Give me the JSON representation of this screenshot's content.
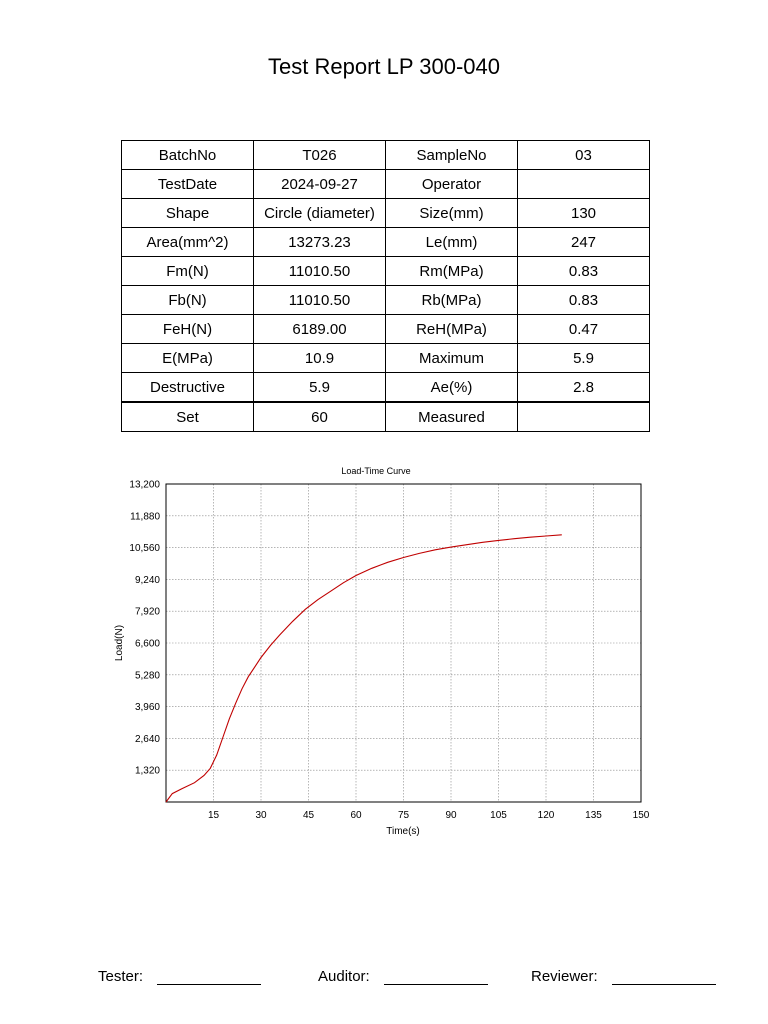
{
  "report": {
    "title": "Test Report LP 300-040"
  },
  "table": {
    "rows": [
      [
        "BatchNo",
        "T026",
        "SampleNo",
        "03"
      ],
      [
        "TestDate",
        "2024-09-27",
        "Operator",
        ""
      ],
      [
        "Shape",
        "Circle (diameter)",
        "Size(mm)",
        "130"
      ],
      [
        "Area(mm^2)",
        "13273.23",
        "Le(mm)",
        "247"
      ],
      [
        "Fm(N)",
        "11010.50",
        "Rm(MPa)",
        "0.83"
      ],
      [
        "Fb(N)",
        "11010.50",
        "Rb(MPa)",
        "0.83"
      ],
      [
        "FeH(N)",
        "6189.00",
        "ReH(MPa)",
        "0.47"
      ],
      [
        "E(MPa)",
        "10.9",
        "Maximum",
        "5.9"
      ],
      [
        "Destructive",
        "5.9",
        "Ae(%)",
        "2.8"
      ],
      [
        "Set",
        "60",
        "Measured",
        ""
      ]
    ]
  },
  "chart_data": {
    "type": "line",
    "title": "Load-Time Curve",
    "xlabel": "Time(s)",
    "ylabel": "Load(N)",
    "xlim": [
      0,
      150
    ],
    "ylim": [
      0,
      13200
    ],
    "x_ticks": [
      "15",
      "30",
      "45",
      "60",
      "75",
      "90",
      "105",
      "120",
      "135",
      "150"
    ],
    "y_ticks": [
      "1,320",
      "2,640",
      "3,960",
      "5,280",
      "6,600",
      "7,920",
      "9,240",
      "10,560",
      "11,880",
      "13,200"
    ],
    "grid": true,
    "series_color": "#c00000",
    "series": [
      {
        "x": [
          0,
          2,
          5,
          9,
          12,
          14,
          16,
          18,
          20,
          22,
          24,
          26,
          28,
          30,
          33,
          36,
          40,
          44,
          48,
          52,
          56,
          60,
          65,
          70,
          75,
          80,
          85,
          90,
          95,
          100,
          105,
          110,
          115,
          120,
          125
        ],
        "y": [
          0,
          350,
          550,
          800,
          1100,
          1400,
          1950,
          2700,
          3450,
          4100,
          4700,
          5200,
          5600,
          6000,
          6500,
          6950,
          7500,
          8000,
          8400,
          8750,
          9100,
          9400,
          9700,
          9950,
          10150,
          10320,
          10470,
          10580,
          10680,
          10780,
          10860,
          10930,
          10990,
          11040,
          11090
        ]
      }
    ]
  },
  "footer": {
    "tester_label": "Tester:",
    "auditor_label": "Auditor:",
    "reviewer_label": "Reviewer:"
  }
}
